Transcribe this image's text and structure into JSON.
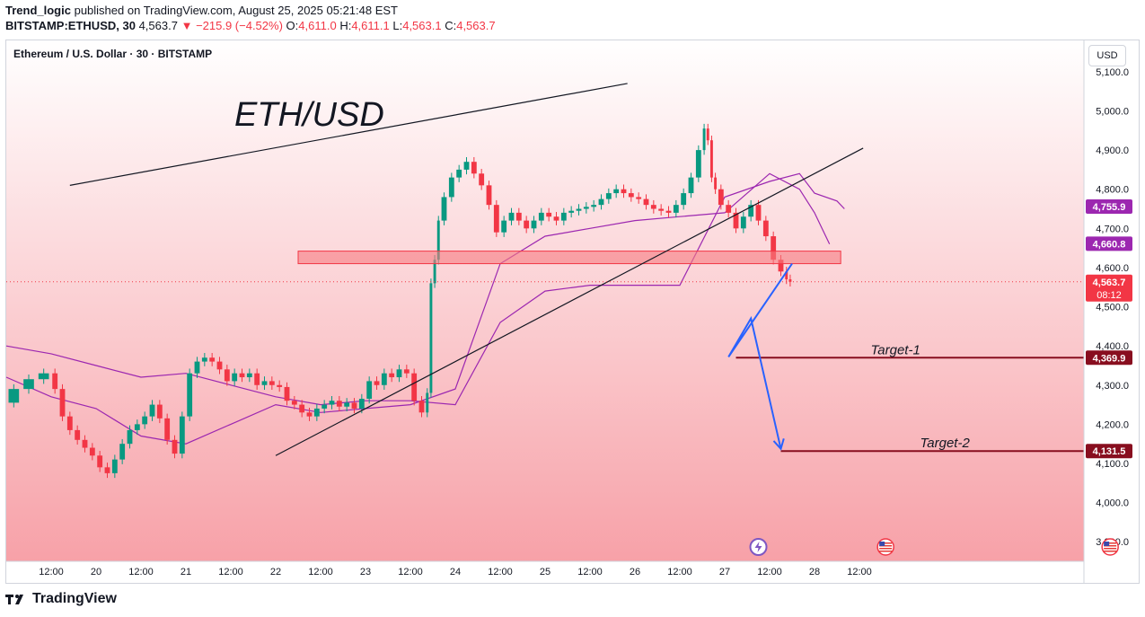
{
  "header": {
    "author": "Trend_logic",
    "published_text": "published on TradingView.com, August 25, 2025 05:21:48 EST",
    "symbol": "BITSTAMP:ETHUSD, 30",
    "last": "4,563.7",
    "change_arrow": "▼",
    "change": "−215.9 (−4.52%)",
    "o_label": "O:",
    "o_value": "4,611.0",
    "h_label": "H:",
    "h_value": "4,611.1",
    "l_label": "L:",
    "l_value": "4,563.1",
    "c_label": "C:",
    "c_value": "4,563.7"
  },
  "pane": {
    "title": "Ethereum / U.S. Dollar · 30 · BITSTAMP",
    "currency_button": "USD"
  },
  "footer": {
    "brand": "TradingView"
  },
  "colors": {
    "up": "#089981",
    "down": "#f23645",
    "ichimoku": "#9c27b0",
    "arrow": "#2962ff",
    "target_line": "#880e1f",
    "zone": "#f77c80",
    "bg_top": "#ffffff",
    "bg_bottom": "#f7a1a8"
  },
  "icons": [
    "lightning-event-icon",
    "us-flag-event-icon",
    "us-flag-event-icon"
  ],
  "chart_data": {
    "type": "candlestick",
    "title": "ETH/USD",
    "ylim": [
      3850,
      5180
    ],
    "y_ticks": [
      3900,
      4000,
      4100,
      4200,
      4300,
      4400,
      4500,
      4600,
      4700,
      4800,
      4900,
      5000,
      5100
    ],
    "y_tick_labels": [
      "3,900.0",
      "4,000.0",
      "4,100.0",
      "4,200.0",
      "4,300.0",
      "4,400.0",
      "4,500.0",
      "4,600.0",
      "4,700.0",
      "4,800.0",
      "4,900.0",
      "5,000.0",
      "5,100.0"
    ],
    "x_tick_labels": [
      "12:00",
      "20",
      "12:00",
      "21",
      "12:00",
      "22",
      "12:00",
      "23",
      "12:00",
      "24",
      "12:00",
      "25",
      "12:00",
      "26",
      "12:00",
      "27",
      "12:00",
      "28",
      "12:00"
    ],
    "x_range_hours": [
      -12,
      276
    ],
    "price_labels": [
      {
        "label": "4,755.9",
        "value": 4755.9,
        "color": "#9c27b0"
      },
      {
        "label": "4,660.8",
        "value": 4660.8,
        "color": "#9c27b0"
      },
      {
        "label": "4,563.7",
        "value": 4563.7,
        "color": "#f23645",
        "sub": "08:12"
      },
      {
        "label": "4,369.9",
        "value": 4369.9,
        "color": "#880e1f"
      },
      {
        "label": "4,131.5",
        "value": 4131.5,
        "color": "#880e1f"
      }
    ],
    "close_series": [
      [
        -12,
        4255
      ],
      [
        -8,
        4290
      ],
      [
        -4,
        4315
      ],
      [
        0,
        4330
      ],
      [
        2,
        4290
      ],
      [
        4,
        4220
      ],
      [
        6,
        4185
      ],
      [
        8,
        4160
      ],
      [
        10,
        4140
      ],
      [
        12,
        4120
      ],
      [
        14,
        4090
      ],
      [
        16,
        4075
      ],
      [
        18,
        4110
      ],
      [
        20,
        4150
      ],
      [
        22,
        4185
      ],
      [
        24,
        4200
      ],
      [
        26,
        4220
      ],
      [
        28,
        4250
      ],
      [
        30,
        4215
      ],
      [
        32,
        4160
      ],
      [
        34,
        4125
      ],
      [
        36,
        4220
      ],
      [
        38,
        4330
      ],
      [
        40,
        4360
      ],
      [
        42,
        4370
      ],
      [
        44,
        4360
      ],
      [
        46,
        4340
      ],
      [
        48,
        4310
      ],
      [
        50,
        4330
      ],
      [
        52,
        4320
      ],
      [
        54,
        4330
      ],
      [
        56,
        4300
      ],
      [
        58,
        4310
      ],
      [
        60,
        4300
      ],
      [
        62,
        4295
      ],
      [
        64,
        4260
      ],
      [
        66,
        4250
      ],
      [
        68,
        4230
      ],
      [
        70,
        4220
      ],
      [
        72,
        4240
      ],
      [
        74,
        4250
      ],
      [
        76,
        4260
      ],
      [
        78,
        4245
      ],
      [
        80,
        4255
      ],
      [
        82,
        4240
      ],
      [
        84,
        4265
      ],
      [
        86,
        4310
      ],
      [
        88,
        4300
      ],
      [
        90,
        4330
      ],
      [
        92,
        4320
      ],
      [
        94,
        4340
      ],
      [
        96,
        4330
      ],
      [
        98,
        4260
      ],
      [
        100,
        4230
      ],
      [
        101,
        4280
      ],
      [
        102,
        4560
      ],
      [
        103,
        4620
      ],
      [
        104,
        4720
      ],
      [
        106,
        4780
      ],
      [
        108,
        4830
      ],
      [
        110,
        4850
      ],
      [
        112,
        4870
      ],
      [
        114,
        4840
      ],
      [
        116,
        4810
      ],
      [
        118,
        4760
      ],
      [
        120,
        4690
      ],
      [
        122,
        4720
      ],
      [
        124,
        4740
      ],
      [
        126,
        4720
      ],
      [
        128,
        4700
      ],
      [
        130,
        4720
      ],
      [
        132,
        4740
      ],
      [
        134,
        4730
      ],
      [
        136,
        4720
      ],
      [
        138,
        4740
      ],
      [
        140,
        4745
      ],
      [
        142,
        4750
      ],
      [
        144,
        4755
      ],
      [
        146,
        4760
      ],
      [
        148,
        4775
      ],
      [
        150,
        4790
      ],
      [
        152,
        4800
      ],
      [
        154,
        4790
      ],
      [
        156,
        4780
      ],
      [
        158,
        4775
      ],
      [
        160,
        4760
      ],
      [
        162,
        4750
      ],
      [
        164,
        4745
      ],
      [
        166,
        4740
      ],
      [
        168,
        4760
      ],
      [
        170,
        4790
      ],
      [
        172,
        4830
      ],
      [
        174,
        4900
      ],
      [
        175,
        4955
      ],
      [
        176,
        4925
      ],
      [
        177,
        4830
      ],
      [
        178,
        4800
      ],
      [
        180,
        4760
      ],
      [
        182,
        4740
      ],
      [
        184,
        4700
      ],
      [
        186,
        4730
      ],
      [
        188,
        4760
      ],
      [
        190,
        4720
      ],
      [
        192,
        4680
      ],
      [
        194,
        4620
      ],
      [
        196,
        4590
      ],
      [
        197,
        4570
      ],
      [
        198,
        4563.7
      ]
    ],
    "ichimoku_line_a": [
      [
        -12,
        4400
      ],
      [
        0,
        4380
      ],
      [
        12,
        4350
      ],
      [
        24,
        4320
      ],
      [
        36,
        4330
      ],
      [
        48,
        4300
      ],
      [
        60,
        4270
      ],
      [
        72,
        4250
      ],
      [
        84,
        4260
      ],
      [
        96,
        4260
      ],
      [
        108,
        4250
      ],
      [
        120,
        4460
      ],
      [
        132,
        4540
      ],
      [
        144,
        4555
      ],
      [
        156,
        4555
      ],
      [
        168,
        4555
      ],
      [
        180,
        4780
      ],
      [
        192,
        4820
      ],
      [
        200,
        4840
      ],
      [
        204,
        4790
      ],
      [
        210,
        4770
      ],
      [
        212,
        4750
      ]
    ],
    "ichimoku_line_b": [
      [
        -12,
        4320
      ],
      [
        0,
        4270
      ],
      [
        12,
        4240
      ],
      [
        24,
        4170
      ],
      [
        36,
        4150
      ],
      [
        48,
        4200
      ],
      [
        60,
        4250
      ],
      [
        72,
        4230
      ],
      [
        84,
        4240
      ],
      [
        96,
        4250
      ],
      [
        108,
        4290
      ],
      [
        120,
        4610
      ],
      [
        132,
        4680
      ],
      [
        144,
        4700
      ],
      [
        156,
        4720
      ],
      [
        168,
        4730
      ],
      [
        180,
        4740
      ],
      [
        192,
        4840
      ],
      [
        200,
        4800
      ],
      [
        204,
        4740
      ],
      [
        208,
        4660
      ]
    ],
    "rising_wedge": {
      "upper": [
        [
          5,
          4810
        ],
        [
          154,
          5070
        ]
      ],
      "lower": [
        [
          60,
          4120
        ],
        [
          217,
          4905
        ]
      ]
    },
    "zone": {
      "x0": 66,
      "x1": 211,
      "y0": 4610,
      "y1": 4642
    },
    "targets": [
      {
        "label": "Target-1",
        "value": 4369.9,
        "x0": 183
      },
      {
        "label": "Target-2",
        "value": 4131.5,
        "x0": 195
      }
    ],
    "projection_arrow": [
      [
        198,
        4610
      ],
      [
        181,
        4372
      ],
      [
        187,
        4470
      ],
      [
        195,
        4137
      ]
    ],
    "event_hours": [
      189,
      223,
      283
    ]
  }
}
